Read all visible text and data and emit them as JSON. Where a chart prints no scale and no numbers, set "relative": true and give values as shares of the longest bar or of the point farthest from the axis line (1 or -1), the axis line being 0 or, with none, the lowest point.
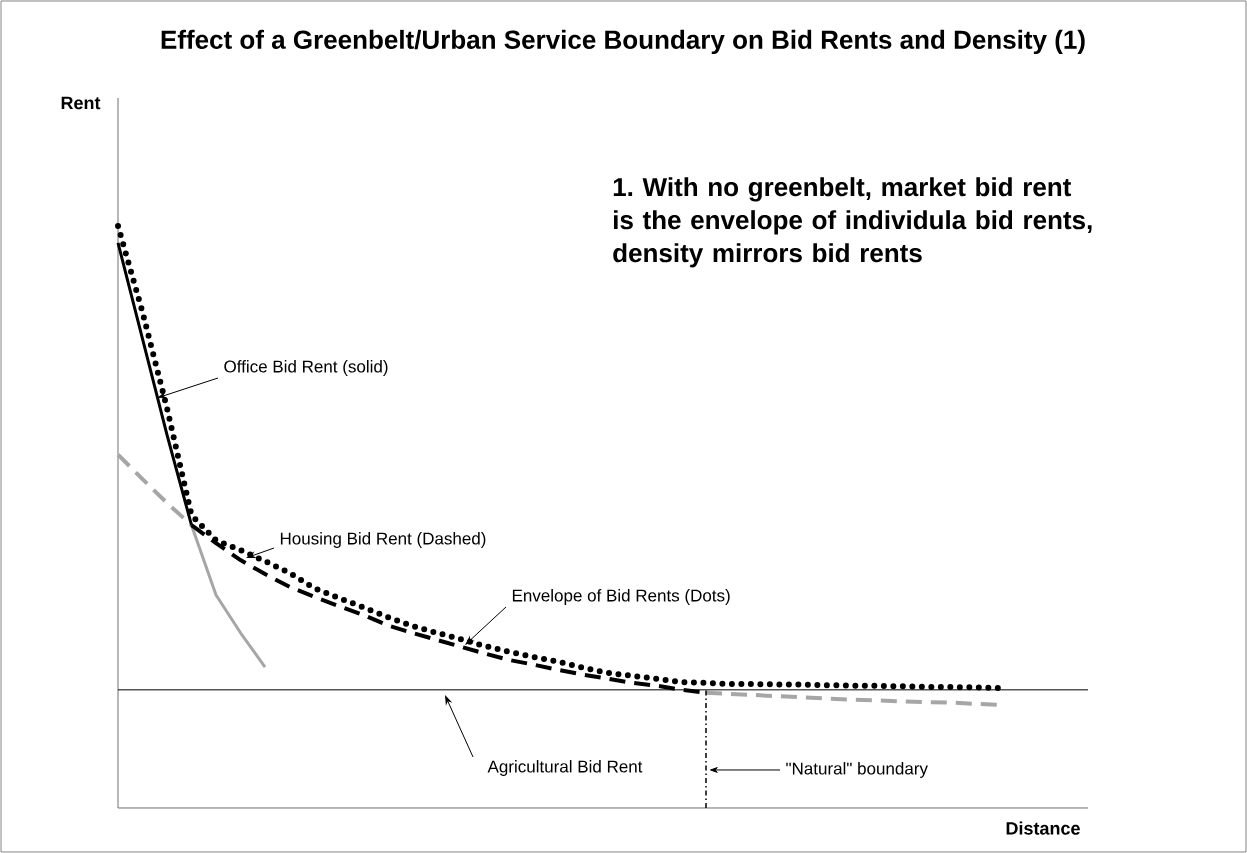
{
  "chart_data": {
    "type": "line",
    "title": "Effect of a Greenbelt/Urban Service Boundary on Bid Rents and Density (1)",
    "xlabel": "Distance",
    "relative": true,
    "categories": [
      null,
      null,
      null,
      null,
      null,
      null,
      null,
      null,
      null,
      null,
      null,
      null,
      null,
      null,
      null,
      null,
      null,
      null,
      null,
      null,
      null,
      null,
      null,
      null,
      null,
      null,
      null,
      null,
      null,
      null,
      null,
      null,
      null,
      null,
      null,
      null,
      null
    ],
    "series": [
      {
        "color": "#a6a6a6",
        "line_style": "solid",
        "values": [
          null,
          null,
          null,
          0.486,
          0.366,
          0.301,
          0.242,
          null,
          null,
          null,
          null,
          null,
          null,
          null,
          null,
          null,
          null,
          null,
          null,
          null,
          null,
          null,
          null,
          null,
          null,
          null,
          null,
          null,
          null,
          null,
          null,
          null,
          null,
          null,
          null,
          null,
          null
        ]
      },
      {
        "color": "#a6a6a6",
        "line_style": "dashed",
        "values": [
          0.607,
          0.565,
          0.524,
          0.486,
          null,
          null,
          null,
          null,
          null,
          null,
          null,
          null,
          null,
          null,
          null,
          null,
          null,
          null,
          null,
          null,
          null,
          null,
          null,
          null,
          null,
          null,
          null,
          null,
          null,
          null,
          null,
          null,
          null,
          null,
          null,
          null,
          null
        ]
      },
      {
        "color": "#a6a6a6",
        "line_style": "dashed",
        "values": [
          null,
          null,
          null,
          null,
          null,
          null,
          null,
          null,
          null,
          null,
          null,
          null,
          null,
          null,
          null,
          null,
          null,
          null,
          null,
          null,
          null,
          null,
          null,
          null,
          0.198,
          0.196,
          0.194,
          0.192,
          0.19,
          0.188,
          0.186,
          0.185,
          0.183,
          0.182,
          0.181,
          0.179,
          0.177
        ]
      },
      {
        "color": "#000000",
        "line_style": "solid",
        "values": [
          0.971,
          0.806,
          0.641,
          0.486,
          null,
          null,
          null,
          null,
          null,
          null,
          null,
          null,
          null,
          null,
          null,
          null,
          null,
          null,
          null,
          null,
          null,
          null,
          null,
          null,
          null,
          null,
          null,
          null,
          null,
          null,
          null,
          null,
          null,
          null,
          null,
          null,
          null
        ]
      },
      {
        "color": "#000000",
        "line_style": "dashed",
        "values": [
          null,
          null,
          null,
          0.486,
          0.455,
          0.426,
          0.402,
          0.38,
          0.363,
          0.347,
          0.332,
          0.314,
          0.301,
          0.289,
          0.277,
          0.265,
          0.254,
          0.246,
          0.237,
          0.229,
          0.222,
          0.215,
          0.21,
          0.203,
          0.198,
          null,
          null,
          null,
          null,
          null,
          null,
          null,
          null,
          null,
          null,
          null,
          null
        ]
      },
      {
        "color": "#000000",
        "line_style": "dotted",
        "values": [
          1.0,
          0.852,
          0.687,
          0.503,
          0.46,
          0.443,
          0.424,
          0.404,
          0.378,
          0.361,
          0.345,
          0.328,
          0.313,
          0.301,
          0.29,
          0.278,
          0.268,
          0.259,
          0.251,
          0.241,
          0.232,
          0.227,
          0.222,
          0.216,
          0.215,
          0.213,
          0.213,
          0.212,
          0.212,
          0.211,
          0.21,
          0.21,
          0.209,
          0.208,
          0.208,
          0.207,
          0.206
        ]
      }
    ],
    "ref_lines": [
      {
        "axis": "y",
        "value": 0.203,
        "color": "#000000"
      }
    ],
    "annotations": [
      "Office Bid Rent (solid)",
      "Housing Bid Rent (Dashed)",
      "Envelope of Bid Rents (Dots)",
      "Agricultural Bid Rent",
      "\"Natural\" boundary",
      "1. With no greenbelt, market bid rent is the envelope of individula bid rents, density mirrors bid rents",
      "Rent"
    ]
  }
}
